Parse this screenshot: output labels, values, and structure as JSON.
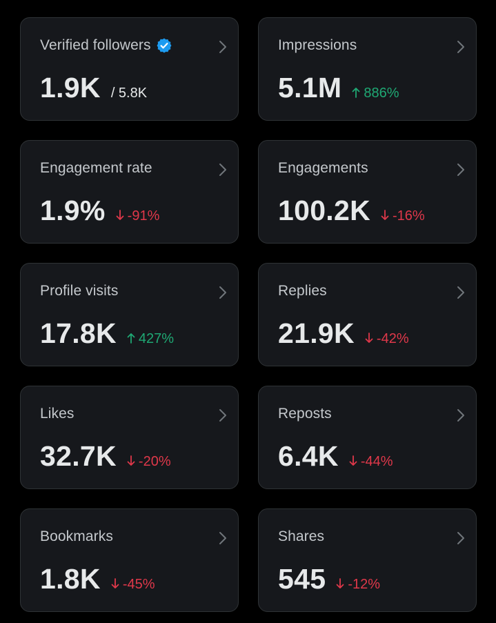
{
  "colors": {
    "background": "#000000",
    "card": "#16181c",
    "border": "#2f3336",
    "up": "#1fa974",
    "down": "#e0384a",
    "verified": "#1d9bf0"
  },
  "cards": [
    {
      "label": "Verified followers",
      "value": "1.9K",
      "sub": "/ 5.8K",
      "verified": true
    },
    {
      "label": "Impressions",
      "value": "5.1M",
      "delta": "886%",
      "direction": "up"
    },
    {
      "label": "Engagement rate",
      "value": "1.9%",
      "delta": "-91%",
      "direction": "down"
    },
    {
      "label": "Engagements",
      "value": "100.2K",
      "delta": "-16%",
      "direction": "down"
    },
    {
      "label": "Profile visits",
      "value": "17.8K",
      "delta": "427%",
      "direction": "up"
    },
    {
      "label": "Replies",
      "value": "21.9K",
      "delta": "-42%",
      "direction": "down"
    },
    {
      "label": "Likes",
      "value": "32.7K",
      "delta": "-20%",
      "direction": "down"
    },
    {
      "label": "Reposts",
      "value": "6.4K",
      "delta": "-44%",
      "direction": "down"
    },
    {
      "label": "Bookmarks",
      "value": "1.8K",
      "delta": "-45%",
      "direction": "down"
    },
    {
      "label": "Shares",
      "value": "545",
      "delta": "-12%",
      "direction": "down"
    }
  ]
}
